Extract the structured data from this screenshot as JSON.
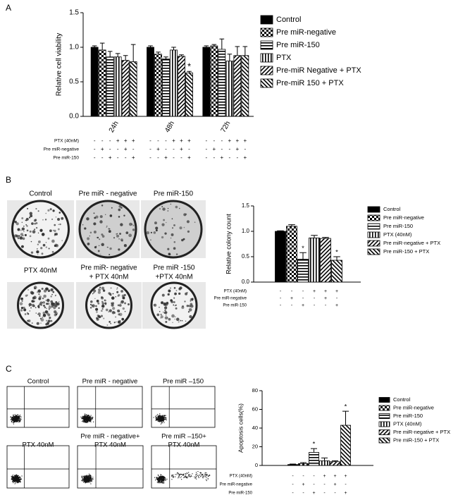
{
  "panel_labels": [
    "A",
    "B",
    "C"
  ],
  "images": {
    "B": [
      [
        "Control"
      ],
      [
        "Pre miR - negative"
      ],
      [
        "Pre miR-150"
      ],
      [
        "PTX 40nM"
      ],
      [
        "Pre miR- negative",
        "+ PTX 40nM"
      ],
      [
        "Pre miR -150",
        "+PTX 40nM"
      ]
    ],
    "C": [
      [
        "Control"
      ],
      [
        "Pre miR - negative"
      ],
      [
        "Pre miR –150"
      ],
      [
        "PTX 40nM"
      ],
      [
        "Pre miR - negative+",
        "PTX 40nM"
      ],
      [
        "Pre miR –150+",
        "PTX 40nM"
      ]
    ]
  },
  "chart_data": [
    {
      "type": "bar",
      "ylabel": "Relative cell viability",
      "categories": [
        "24h",
        "48h",
        "72h"
      ],
      "ylim": [
        0,
        1.5
      ],
      "yticks": [
        {
          "value": 0,
          "label": "0.0"
        },
        0.5,
        {
          "value": 1,
          "label": "1.0"
        },
        1.5
      ],
      "series": [
        {
          "name": "Control",
          "pattern": "solid",
          "color": "#000000",
          "values": [
            1.0,
            1.0,
            1.0
          ],
          "errors": [
            0.02,
            0.02,
            0.02
          ],
          "significance": [
            null,
            null,
            null
          ]
        },
        {
          "name": "Pre miR-negative",
          "pattern": "checker",
          "color": "#000000",
          "values": [
            0.96,
            0.9,
            1.02
          ],
          "errors": [
            0.1,
            0.03,
            0.02
          ],
          "significance": [
            null,
            null,
            null
          ]
        },
        {
          "name": "Pre miR-150",
          "pattern": "hlines",
          "color": "#000000",
          "values": [
            0.86,
            0.83,
            0.97
          ],
          "errors": [
            0.08,
            0.03,
            0.15
          ],
          "significance": [
            null,
            null,
            null
          ]
        },
        {
          "name": "PTX",
          "pattern": "vlines",
          "color": "#000000",
          "values": [
            0.86,
            0.96,
            0.8
          ],
          "errors": [
            0.05,
            0.04,
            0.1
          ],
          "significance": [
            null,
            null,
            null
          ]
        },
        {
          "name": "Pre-miR Negative + PTX",
          "pattern": "diag",
          "color": "#000000",
          "values": [
            0.81,
            0.87,
            0.88
          ],
          "errors": [
            0.07,
            0.02,
            0.13
          ],
          "significance": [
            null,
            null,
            null
          ]
        },
        {
          "name": "Pre-miR 150 + PTX",
          "pattern": "diag2",
          "color": "#000000",
          "values": [
            0.79,
            0.63,
            0.88
          ],
          "errors": [
            0.25,
            0.02,
            0.13
          ],
          "significance": [
            null,
            "*",
            null
          ]
        }
      ],
      "condition_rows": [
        {
          "label": "PTX (40nM)",
          "signs": [
            "-",
            "-",
            "-",
            "+",
            "+",
            "+",
            "-",
            "-",
            "-",
            "+",
            "+",
            "+",
            "-",
            "-",
            "-",
            "+",
            "+",
            "+"
          ]
        },
        {
          "label": "Pre miR-negative",
          "signs": [
            "-",
            "+",
            "-",
            "-",
            "+",
            "-",
            "-",
            "+",
            "-",
            "-",
            "+",
            "-",
            "-",
            "+",
            "-",
            "-",
            "+",
            "-"
          ]
        },
        {
          "label": "Pre miR-150",
          "signs": [
            "-",
            "-",
            "+",
            "-",
            "-",
            "+",
            "-",
            "-",
            "+",
            "-",
            "-",
            "+",
            "-",
            "-",
            "+",
            "-",
            "-",
            "+"
          ]
        }
      ]
    },
    {
      "type": "bar",
      "ylabel": "Relative colony count",
      "ylim": [
        0,
        1.5
      ],
      "yticks": [
        {
          "value": 0,
          "label": "0.0"
        },
        0.5,
        {
          "value": 1,
          "label": "1.0"
        },
        1.5
      ],
      "series": [
        {
          "name": "Control",
          "pattern": "solid",
          "color": "#000000",
          "values": [
            1.0
          ],
          "errors": [
            0.01
          ],
          "significance": [
            null
          ]
        },
        {
          "name": "Pre miR-negative",
          "pattern": "checker",
          "color": "#000000",
          "values": [
            1.1
          ],
          "errors": [
            0.03
          ],
          "significance": [
            null
          ]
        },
        {
          "name": "Pre miR-150",
          "pattern": "hlines",
          "color": "#000000",
          "values": [
            0.45
          ],
          "errors": [
            0.13
          ],
          "significance": [
            "*"
          ]
        },
        {
          "name": "PTX (40nM)",
          "pattern": "vlines",
          "color": "#000000",
          "values": [
            0.87
          ],
          "errors": [
            0.05
          ],
          "significance": [
            null
          ]
        },
        {
          "name": "Pre miR-negative + PTX",
          "pattern": "diag",
          "color": "#000000",
          "values": [
            0.86
          ],
          "errors": [
            0.02
          ],
          "significance": [
            null
          ]
        },
        {
          "name": "Pre miR-150 + PTX",
          "pattern": "diag2",
          "color": "#000000",
          "values": [
            0.43
          ],
          "errors": [
            0.07
          ],
          "significance": [
            "*"
          ]
        }
      ],
      "condition_rows": [
        {
          "label": "PTX (40nM)",
          "signs": [
            "-",
            "-",
            "-",
            "+",
            "+",
            "+"
          ]
        },
        {
          "label": "Pre miR-negative",
          "signs": [
            "-",
            "+",
            "-",
            "-",
            "+",
            "-"
          ]
        },
        {
          "label": "Pre miR-150",
          "signs": [
            "-",
            "-",
            "+",
            "-",
            "-",
            "+"
          ]
        }
      ]
    },
    {
      "type": "bar",
      "ylabel": "Apoptosis cells(%)",
      "ylim": [
        0,
        80
      ],
      "yticks": [
        0,
        20,
        40,
        60,
        80
      ],
      "series": [
        {
          "name": "Control",
          "pattern": "solid",
          "color": "#000000",
          "values": [
            1
          ],
          "errors": [
            0.5
          ],
          "significance": [
            null
          ]
        },
        {
          "name": "Pre miR-negative",
          "pattern": "checker",
          "color": "#000000",
          "values": [
            2
          ],
          "errors": [
            1
          ],
          "significance": [
            null
          ]
        },
        {
          "name": "Pre miR-150",
          "pattern": "hlines",
          "color": "#000000",
          "values": [
            14
          ],
          "errors": [
            4
          ],
          "significance": [
            "*"
          ]
        },
        {
          "name": "PTX (40nM)",
          "pattern": "vlines",
          "color": "#000000",
          "values": [
            5
          ],
          "errors": [
            3
          ],
          "significance": [
            null
          ]
        },
        {
          "name": "Pre miR-negative + PTX",
          "pattern": "diag",
          "color": "#000000",
          "values": [
            4
          ],
          "errors": [
            1
          ],
          "significance": [
            null
          ]
        },
        {
          "name": "Pre miR-150 + PTX",
          "pattern": "diag2",
          "color": "#000000",
          "values": [
            43
          ],
          "errors": [
            15
          ],
          "significance": [
            "*"
          ]
        }
      ],
      "condition_rows": [
        {
          "label": "PTX (40nM)",
          "signs": [
            "-",
            "-",
            "-",
            "+",
            "+",
            "+"
          ]
        },
        {
          "label": "Pre miR-negative",
          "signs": [
            "-",
            "+",
            "-",
            "-",
            "+",
            "-"
          ]
        },
        {
          "label": "Pre miR-150",
          "signs": [
            "-",
            "-",
            "+",
            "-",
            "-",
            "+"
          ]
        }
      ]
    }
  ]
}
